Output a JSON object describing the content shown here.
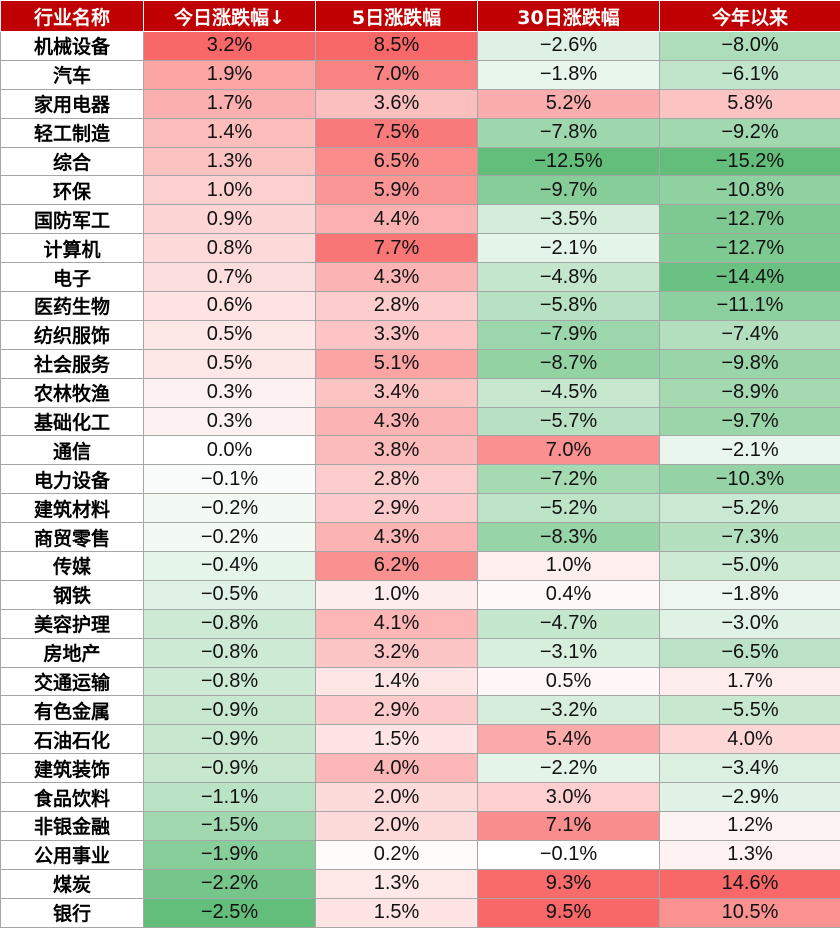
{
  "table": {
    "headers": [
      "行业名称",
      "今日涨跌幅↓",
      "5日涨跌幅",
      "30日涨跌幅",
      "今年以来"
    ],
    "colors": {
      "header_bg": "#c00000",
      "positive": "#f86868",
      "negative": "#63be7b",
      "neutral": "#ffffff"
    },
    "rows": [
      [
        "机械设备",
        "3.2%",
        "8.5%",
        "−2.6%",
        "−8.0%"
      ],
      [
        "汽车",
        "1.9%",
        "7.0%",
        "−1.8%",
        "−6.1%"
      ],
      [
        "家用电器",
        "1.7%",
        "3.6%",
        "5.2%",
        "5.8%"
      ],
      [
        "轻工制造",
        "1.4%",
        "7.5%",
        "−7.8%",
        "−9.2%"
      ],
      [
        "综合",
        "1.3%",
        "6.5%",
        "−12.5%",
        "−15.2%"
      ],
      [
        "环保",
        "1.0%",
        "5.9%",
        "−9.7%",
        "−10.8%"
      ],
      [
        "国防军工",
        "0.9%",
        "4.4%",
        "−3.5%",
        "−12.7%"
      ],
      [
        "计算机",
        "0.8%",
        "7.7%",
        "−2.1%",
        "−12.7%"
      ],
      [
        "电子",
        "0.7%",
        "4.3%",
        "−4.8%",
        "−14.4%"
      ],
      [
        "医药生物",
        "0.6%",
        "2.8%",
        "−5.8%",
        "−11.1%"
      ],
      [
        "纺织服饰",
        "0.5%",
        "3.3%",
        "−7.9%",
        "−7.4%"
      ],
      [
        "社会服务",
        "0.5%",
        "5.1%",
        "−8.7%",
        "−9.8%"
      ],
      [
        "农林牧渔",
        "0.3%",
        "3.4%",
        "−4.5%",
        "−8.9%"
      ],
      [
        "基础化工",
        "0.3%",
        "4.3%",
        "−5.7%",
        "−9.7%"
      ],
      [
        "通信",
        "0.0%",
        "3.8%",
        "7.0%",
        "−2.1%"
      ],
      [
        "电力设备",
        "−0.1%",
        "2.8%",
        "−7.2%",
        "−10.3%"
      ],
      [
        "建筑材料",
        "−0.2%",
        "2.9%",
        "−5.2%",
        "−5.2%"
      ],
      [
        "商贸零售",
        "−0.2%",
        "4.3%",
        "−8.3%",
        "−7.3%"
      ],
      [
        "传媒",
        "−0.4%",
        "6.2%",
        "1.0%",
        "−5.0%"
      ],
      [
        "钢铁",
        "−0.5%",
        "1.0%",
        "0.4%",
        "−1.8%"
      ],
      [
        "美容护理",
        "−0.8%",
        "4.1%",
        "−4.7%",
        "−3.0%"
      ],
      [
        "房地产",
        "−0.8%",
        "3.2%",
        "−3.1%",
        "−6.5%"
      ],
      [
        "交通运输",
        "−0.8%",
        "1.4%",
        "0.5%",
        "1.7%"
      ],
      [
        "有色金属",
        "−0.9%",
        "2.9%",
        "−3.2%",
        "−5.5%"
      ],
      [
        "石油石化",
        "−0.9%",
        "1.5%",
        "5.4%",
        "4.0%"
      ],
      [
        "建筑装饰",
        "−0.9%",
        "4.0%",
        "−2.2%",
        "−3.4%"
      ],
      [
        "食品饮料",
        "−1.1%",
        "2.0%",
        "3.0%",
        "−2.9%"
      ],
      [
        "非银金融",
        "−1.5%",
        "2.0%",
        "7.1%",
        "1.2%"
      ],
      [
        "公用事业",
        "−1.9%",
        "0.2%",
        "−0.1%",
        "1.3%"
      ],
      [
        "煤炭",
        "−2.2%",
        "1.3%",
        "9.3%",
        "14.6%"
      ],
      [
        "银行",
        "−2.5%",
        "1.5%",
        "9.5%",
        "10.5%"
      ]
    ]
  }
}
